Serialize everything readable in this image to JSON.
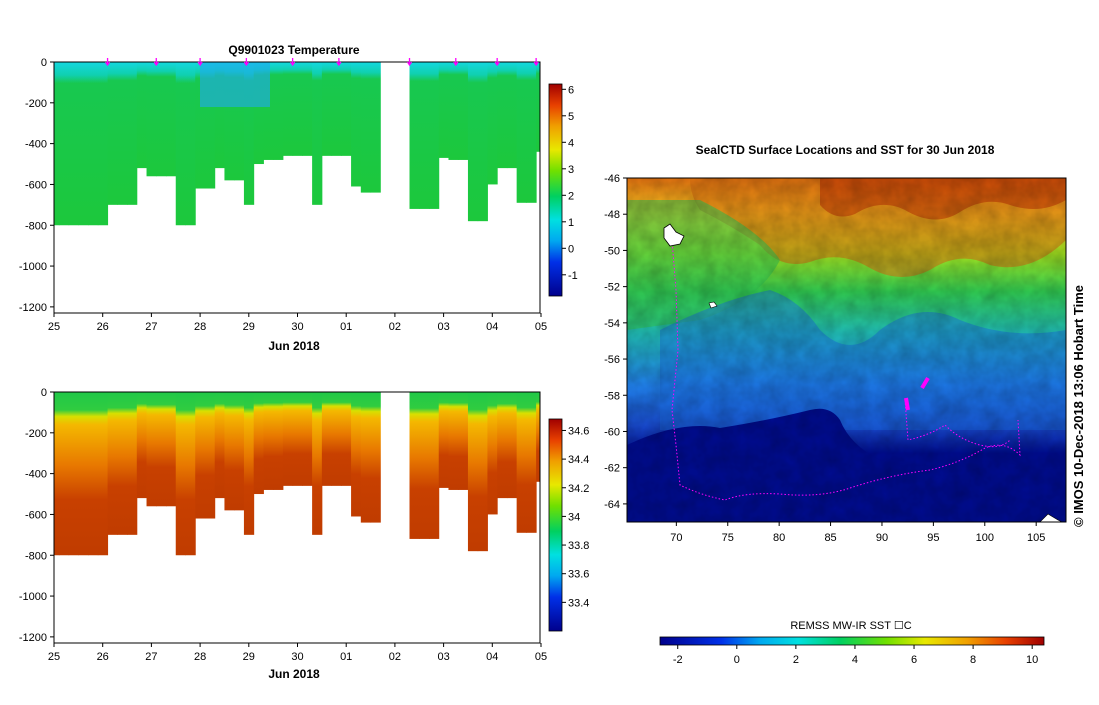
{
  "colors": {
    "land_sea_ice": "#000c8c",
    "track": "#ff00ff",
    "axis": "#000000"
  },
  "chart_data": [
    {
      "type": "heatmap",
      "title": "Q9901023  Temperature",
      "xlabel": "Jun 2018",
      "x_ticks": [
        "25",
        "26",
        "27",
        "28",
        "29",
        "30",
        "01",
        "02",
        "03",
        "04",
        "05"
      ],
      "y_ticks": [
        0,
        -200,
        -400,
        -600,
        -800,
        -1000,
        -1200
      ],
      "ylim": [
        -1230,
        0
      ],
      "colorbar": {
        "min": -1.8,
        "max": 6.2,
        "ticks": [
          -1,
          0,
          1,
          2,
          3,
          4,
          5,
          6
        ]
      },
      "profile_marker_days": [
        1.1,
        2.1,
        3.0,
        3.95,
        4.9,
        5.85,
        7.3,
        8.25,
        9.1,
        9.9
      ],
      "profiles": {
        "x_days": [
          0,
          0.1,
          0.3,
          0.5,
          0.7,
          0.9,
          1.1,
          1.3,
          1.5,
          1.7,
          1.9,
          2.1,
          2.3,
          2.5,
          2.7,
          2.9,
          3.1,
          3.3,
          3.5,
          3.7,
          3.9,
          4.1,
          4.3,
          4.5,
          4.7,
          4.9,
          5.1,
          5.3,
          5.5,
          5.7,
          5.9,
          6.1,
          6.3,
          6.5,
          7.3,
          7.5,
          7.7,
          7.9,
          8.1,
          8.3,
          8.5,
          8.7,
          8.9,
          9.1,
          9.3,
          9.5,
          9.7,
          9.9
        ],
        "max_depth": [
          -800,
          -800,
          -800,
          -800,
          -800,
          -800,
          -700,
          -700,
          -700,
          -520,
          -560,
          -560,
          -560,
          -800,
          -800,
          -620,
          -620,
          -520,
          -580,
          -580,
          -700,
          -500,
          -480,
          -480,
          -460,
          -460,
          -460,
          -700,
          -460,
          -460,
          -460,
          -610,
          -640,
          -640,
          -720,
          -720,
          -720,
          -470,
          -480,
          -480,
          -780,
          -780,
          -600,
          -520,
          -520,
          -690,
          -690,
          -440
        ]
      }
    },
    {
      "type": "heatmap",
      "title": "",
      "xlabel": "Jun 2018",
      "x_ticks": [
        "25",
        "26",
        "27",
        "28",
        "29",
        "30",
        "01",
        "02",
        "03",
        "04",
        "05"
      ],
      "y_ticks": [
        0,
        -200,
        -400,
        -600,
        -800,
        -1000,
        -1200
      ],
      "ylim": [
        -1230,
        0
      ],
      "colorbar": {
        "min": 33.2,
        "max": 34.68,
        "ticks": [
          33.4,
          33.6,
          33.8,
          34,
          34.2,
          34.4,
          34.6
        ]
      }
    },
    {
      "type": "heatmap",
      "title": "SealCTD Surface Locations and SST for 30 Jun 2018",
      "x_ticks": [
        70,
        75,
        80,
        85,
        90,
        95,
        100,
        105
      ],
      "y_ticks": [
        -46,
        -48,
        -50,
        -52,
        -54,
        -56,
        -58,
        -60,
        -62,
        -64
      ],
      "xlim": [
        65.2,
        107.9
      ],
      "ylim": [
        -65,
        -46
      ],
      "colorbar": {
        "label": "REMSS MW-IR SST ☐C",
        "min": -2.6,
        "max": 10.4,
        "ticks": [
          -2,
          0,
          2,
          4,
          6,
          8,
          10
        ]
      },
      "side_label": "©  IMOS 10-Dec-2018 13:06 Hobart Time"
    }
  ]
}
